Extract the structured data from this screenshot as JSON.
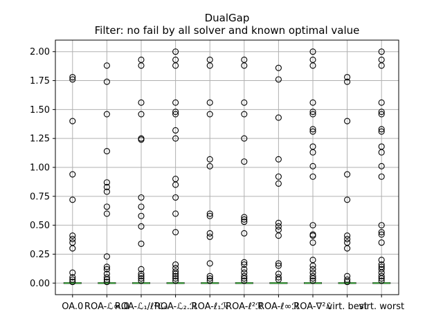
{
  "chart_data": {
    "type": "boxplot",
    "title": "DualGap",
    "subtitle": "Filter: no fail by all solver and known optimal value",
    "categories": [
      "OA.0",
      "ROA-ℒ∞.0",
      "ROA-ℒ₁/ℓ²ℒ₀",
      "ROA-ℒ₂.ℛ",
      "ROA-ℓ₁ℛ",
      "ROA-ℓ²ℛ",
      "ROA-ℓ∞ℛ",
      "ROA-∇²ℒ",
      "virt. best",
      "virt. worst"
    ],
    "ylim": [
      -0.1,
      2.1
    ],
    "yticks": [
      0.0,
      0.25,
      0.5,
      0.75,
      1.0,
      1.25,
      1.5,
      1.75,
      2.0
    ],
    "ytick_labels": [
      "0.00",
      "0.25",
      "0.50",
      "0.75",
      "1.00",
      "1.25",
      "1.50",
      "1.75",
      "2.00"
    ],
    "grid": true,
    "median_color": "#2ca02c",
    "outlier_color": "#000000",
    "series": [
      {
        "median": 0.0,
        "outliers": [
          1.78,
          1.76,
          1.4,
          0.94,
          0.72,
          0.41,
          0.38,
          0.35,
          0.3,
          0.09,
          0.05,
          0.03,
          0.01
        ]
      },
      {
        "median": 0.0,
        "outliers": [
          1.88,
          1.74,
          1.46,
          1.14,
          0.87,
          0.83,
          0.79,
          0.66,
          0.6,
          0.23,
          0.14,
          0.12,
          0.08,
          0.05,
          0.03,
          0.01
        ]
      },
      {
        "median": 0.0,
        "outliers": [
          1.93,
          1.88,
          1.56,
          1.46,
          1.25,
          1.24,
          0.74,
          0.66,
          0.58,
          0.49,
          0.34,
          0.12,
          0.08,
          0.06,
          0.04,
          0.02
        ]
      },
      {
        "median": 0.0,
        "outliers": [
          2.0,
          1.93,
          1.88,
          1.56,
          1.48,
          1.46,
          1.32,
          1.25,
          0.9,
          0.85,
          0.74,
          0.6,
          0.44,
          0.16,
          0.13,
          0.1,
          0.08,
          0.06,
          0.04,
          0.02
        ]
      },
      {
        "median": 0.0,
        "outliers": [
          1.93,
          1.88,
          1.56,
          1.46,
          1.07,
          1.01,
          0.6,
          0.58,
          0.43,
          0.4,
          0.17,
          0.06,
          0.04,
          0.02
        ]
      },
      {
        "median": 0.0,
        "outliers": [
          1.93,
          1.88,
          1.56,
          1.46,
          1.25,
          1.05,
          0.57,
          0.55,
          0.53,
          0.43,
          0.18,
          0.16,
          0.12,
          0.09,
          0.06,
          0.04,
          0.02
        ]
      },
      {
        "median": 0.0,
        "outliers": [
          1.86,
          1.76,
          1.43,
          1.07,
          0.92,
          0.86,
          0.52,
          0.49,
          0.46,
          0.41,
          0.17,
          0.15,
          0.08,
          0.05,
          0.03
        ]
      },
      {
        "median": 0.0,
        "outliers": [
          2.0,
          1.93,
          1.88,
          1.56,
          1.48,
          1.46,
          1.33,
          1.31,
          1.18,
          1.13,
          1.01,
          0.92,
          0.5,
          0.42,
          0.41,
          0.35,
          0.2,
          0.15,
          0.12,
          0.09,
          0.06,
          0.04,
          0.02
        ]
      },
      {
        "median": 0.0,
        "outliers": [
          1.78,
          1.74,
          1.4,
          0.94,
          0.72,
          0.41,
          0.38,
          0.35,
          0.3,
          0.06,
          0.03,
          0.01
        ]
      },
      {
        "median": 0.0,
        "outliers": [
          2.0,
          1.93,
          1.88,
          1.56,
          1.48,
          1.46,
          1.33,
          1.31,
          1.18,
          1.13,
          1.01,
          0.92,
          0.5,
          0.44,
          0.42,
          0.35,
          0.2,
          0.16,
          0.14,
          0.12,
          0.09,
          0.06,
          0.04,
          0.02
        ]
      }
    ]
  }
}
